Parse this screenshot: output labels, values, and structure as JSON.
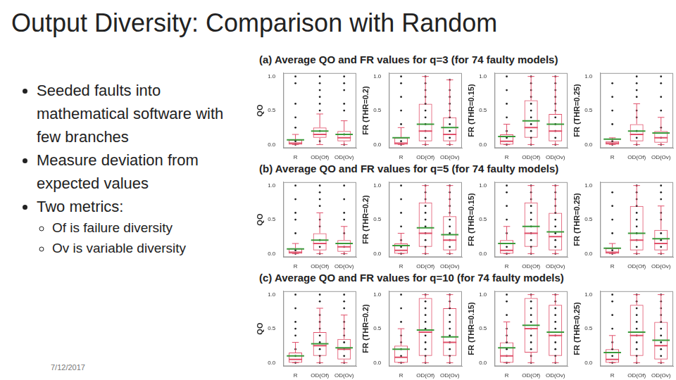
{
  "slide": {
    "title": "Output Diversity: Comparison with Random",
    "bullets": [
      {
        "text": "Seeded faults into mathematical software with few branches",
        "sub": []
      },
      {
        "text": "Measure deviation from expected values",
        "sub": []
      },
      {
        "text": "Two metrics:",
        "sub": [
          "Of is failure diversity",
          "Ov is variable diversity"
        ]
      }
    ],
    "date": "7/12/2017"
  },
  "chart_data": [
    {
      "type": "boxplot",
      "title": "(a) Average QO and FR values for q=3 (for 74 faulty models)",
      "categories": [
        "R",
        "OD(Of)",
        "OD(Ov)"
      ],
      "color": "#e0506a",
      "grid": false,
      "ylim": [
        -0.05,
        1.05
      ],
      "yticks": [
        {
          "value": 0,
          "label": "0.0"
        },
        {
          "value": 0.5,
          "label": "0.5"
        },
        {
          "value": 1,
          "label": "1.0"
        }
      ],
      "panels": [
        {
          "y_label": "QO",
          "boxes": [
            {
              "min": 0,
              "q1": 0,
              "median": 0.02,
              "q3": 0.07,
              "max": 0.15,
              "mean": 0.07,
              "points": [
                0,
                0.05,
                0.25,
                0.4,
                0.6,
                0.9,
                1
              ]
            },
            {
              "min": 0,
              "q1": 0.1,
              "median": 0.15,
              "q3": 0.25,
              "max": 0.45,
              "mean": 0.2,
              "points": [
                0.05,
                0.2,
                0.5,
                0.6,
                0.7,
                0.8,
                0.9,
                1
              ]
            },
            {
              "min": 0,
              "q1": 0.05,
              "median": 0.1,
              "q3": 0.2,
              "max": 0.35,
              "mean": 0.15,
              "points": [
                0,
                0.15,
                0.5,
                0.6,
                0.8,
                0.9,
                1
              ]
            }
          ]
        },
        {
          "y_label": "FR (THR=0.2)",
          "boxes": [
            {
              "min": 0,
              "q1": 0,
              "median": 0.02,
              "q3": 0.1,
              "max": 0.25,
              "mean": 0.1,
              "points": [
                0,
                0.05,
                0.3,
                0.5,
                0.7,
                0.9,
                1
              ]
            },
            {
              "min": 0,
              "q1": 0.05,
              "median": 0.2,
              "q3": 0.6,
              "max": 1,
              "mean": 0.3,
              "points": [
                0,
                0.1,
                0.2,
                0.3,
                0.4,
                0.5,
                0.6,
                0.7,
                0.8,
                0.9,
                1
              ]
            },
            {
              "min": 0,
              "q1": 0.05,
              "median": 0.15,
              "q3": 0.4,
              "max": 0.95,
              "mean": 0.25,
              "points": [
                0,
                0.1,
                0.2,
                0.3,
                0.4,
                0.5,
                0.6,
                0.7,
                0.8,
                0.95
              ]
            }
          ]
        },
        {
          "y_label": "FR (THR=0.15)",
          "boxes": [
            {
              "min": 0,
              "q1": 0,
              "median": 0.05,
              "q3": 0.15,
              "max": 0.3,
              "mean": 0.12,
              "points": [
                0,
                0.1,
                0.2,
                0.4,
                0.6,
                0.8,
                1
              ]
            },
            {
              "min": 0,
              "q1": 0.1,
              "median": 0.25,
              "q3": 0.65,
              "max": 1,
              "mean": 0.35,
              "points": [
                0,
                0.1,
                0.2,
                0.3,
                0.4,
                0.5,
                0.6,
                0.7,
                0.8,
                0.9,
                1
              ]
            },
            {
              "min": 0,
              "q1": 0.05,
              "median": 0.2,
              "q3": 0.45,
              "max": 1,
              "mean": 0.3,
              "points": [
                0,
                0.1,
                0.2,
                0.3,
                0.4,
                0.5,
                0.6,
                0.7,
                0.8,
                0.9,
                1
              ]
            }
          ]
        },
        {
          "y_label": "FR (THR=0.25)",
          "boxes": [
            {
              "min": 0,
              "q1": 0,
              "median": 0.02,
              "q3": 0.05,
              "max": 0.1,
              "mean": 0.08,
              "points": [
                0,
                0.05,
                0.3,
                0.5,
                0.7,
                0.9
              ]
            },
            {
              "min": 0,
              "q1": 0.05,
              "median": 0.15,
              "q3": 0.3,
              "max": 0.6,
              "mean": 0.2,
              "points": [
                0,
                0.1,
                0.2,
                0.4,
                0.5,
                0.7,
                0.8,
                0.9,
                1
              ]
            },
            {
              "min": 0,
              "q1": 0.03,
              "median": 0.1,
              "q3": 0.2,
              "max": 0.4,
              "mean": 0.17,
              "points": [
                0,
                0.1,
                0.25,
                0.5,
                0.7,
                0.9,
                1
              ]
            }
          ]
        }
      ]
    },
    {
      "type": "boxplot",
      "title": "(b) Average QO and FR values for q=5 (for 74 faulty models)",
      "categories": [
        "R",
        "OD(Of)",
        "OD(Ov)"
      ],
      "color": "#e0506a",
      "grid": false,
      "ylim": [
        -0.05,
        1.05
      ],
      "yticks": [
        {
          "value": 0,
          "label": "0.0"
        },
        {
          "value": 0.5,
          "label": "0.5"
        },
        {
          "value": 1,
          "label": "1.0"
        }
      ],
      "panels": [
        {
          "y_label": "QO",
          "boxes": [
            {
              "min": 0,
              "q1": 0,
              "median": 0.02,
              "q3": 0.08,
              "max": 0.15,
              "mean": 0.07,
              "points": [
                0,
                0.05,
                0.3,
                0.5,
                0.6,
                0.8,
                1
              ]
            },
            {
              "min": 0,
              "q1": 0.05,
              "median": 0.15,
              "q3": 0.3,
              "max": 0.6,
              "mean": 0.2,
              "points": [
                0,
                0.1,
                0.2,
                0.4,
                0.5,
                0.7,
                0.8,
                0.9,
                1
              ]
            },
            {
              "min": 0,
              "q1": 0.03,
              "median": 0.1,
              "q3": 0.2,
              "max": 0.4,
              "mean": 0.15,
              "points": [
                0,
                0.1,
                0.3,
                0.5,
                0.6,
                0.8,
                1
              ]
            }
          ]
        },
        {
          "y_label": "FR (THR=0.2)",
          "boxes": [
            {
              "min": 0,
              "q1": 0,
              "median": 0.05,
              "q3": 0.15,
              "max": 0.3,
              "mean": 0.12,
              "points": [
                0,
                0.1,
                0.2,
                0.4,
                0.6,
                0.8,
                1
              ]
            },
            {
              "min": 0,
              "q1": 0.1,
              "median": 0.3,
              "q3": 0.75,
              "max": 1,
              "mean": 0.38,
              "points": [
                0,
                0.1,
                0.2,
                0.3,
                0.4,
                0.5,
                0.6,
                0.7,
                0.8,
                0.9,
                1
              ]
            },
            {
              "min": 0,
              "q1": 0.05,
              "median": 0.2,
              "q3": 0.55,
              "max": 1,
              "mean": 0.28,
              "points": [
                0,
                0.1,
                0.2,
                0.3,
                0.4,
                0.5,
                0.6,
                0.7,
                0.8,
                0.9,
                1
              ]
            }
          ]
        },
        {
          "y_label": "FR (THR=0.15)",
          "boxes": [
            {
              "min": 0,
              "q1": 0,
              "median": 0.05,
              "q3": 0.2,
              "max": 0.4,
              "mean": 0.15,
              "points": [
                0,
                0.1,
                0.3,
                0.5,
                0.7,
                0.9,
                1
              ]
            },
            {
              "min": 0,
              "q1": 0.1,
              "median": 0.3,
              "q3": 0.75,
              "max": 1,
              "mean": 0.4,
              "points": [
                0,
                0.1,
                0.2,
                0.3,
                0.4,
                0.5,
                0.6,
                0.7,
                0.8,
                0.9,
                1
              ]
            },
            {
              "min": 0,
              "q1": 0.05,
              "median": 0.25,
              "q3": 0.6,
              "max": 1,
              "mean": 0.32,
              "points": [
                0,
                0.1,
                0.2,
                0.3,
                0.4,
                0.5,
                0.6,
                0.7,
                0.8,
                0.9,
                1
              ]
            }
          ]
        },
        {
          "y_label": "FR (THR=0.25)",
          "boxes": [
            {
              "min": 0,
              "q1": 0,
              "median": 0.02,
              "q3": 0.08,
              "max": 0.15,
              "mean": 0.08,
              "points": [
                0,
                0.05,
                0.3,
                0.5,
                0.7,
                0.9
              ]
            },
            {
              "min": 0,
              "q1": 0.05,
              "median": 0.2,
              "q3": 0.7,
              "max": 1,
              "mean": 0.3,
              "points": [
                0,
                0.1,
                0.2,
                0.3,
                0.4,
                0.5,
                0.6,
                0.7,
                0.8,
                0.9,
                1
              ]
            },
            {
              "min": 0,
              "q1": 0.05,
              "median": 0.15,
              "q3": 0.35,
              "max": 0.7,
              "mean": 0.22,
              "points": [
                0,
                0.1,
                0.2,
                0.3,
                0.5,
                0.6,
                0.8,
                0.9,
                1
              ]
            }
          ]
        }
      ]
    },
    {
      "type": "boxplot",
      "title": "(c) Average QO and FR values for q=10 (for 74 faulty models)",
      "categories": [
        "R",
        "OD(Of)",
        "OD(Ov)"
      ],
      "color": "#e0506a",
      "grid": false,
      "ylim": [
        -0.05,
        1.05
      ],
      "yticks": [
        {
          "value": 0,
          "label": "0.0"
        },
        {
          "value": 0.5,
          "label": "0.5"
        },
        {
          "value": 1,
          "label": "1.0"
        }
      ],
      "panels": [
        {
          "y_label": "QO",
          "boxes": [
            {
              "min": 0,
              "q1": 0,
              "median": 0.05,
              "q3": 0.15,
              "max": 0.3,
              "mean": 0.1,
              "points": [
                0,
                0.1,
                0.2,
                0.4,
                0.5,
                0.6,
                0.8,
                1
              ]
            },
            {
              "min": 0,
              "q1": 0.1,
              "median": 0.25,
              "q3": 0.45,
              "max": 0.8,
              "mean": 0.28,
              "points": [
                0,
                0.1,
                0.2,
                0.3,
                0.4,
                0.5,
                0.6,
                0.7,
                0.9,
                1
              ]
            },
            {
              "min": 0,
              "q1": 0.05,
              "median": 0.2,
              "q3": 0.35,
              "max": 0.7,
              "mean": 0.22,
              "points": [
                0,
                0.1,
                0.2,
                0.3,
                0.4,
                0.5,
                0.6,
                0.8,
                0.9,
                1
              ]
            }
          ]
        },
        {
          "y_label": "FR (THR=0.2)",
          "boxes": [
            {
              "min": 0,
              "q1": 0,
              "median": 0.08,
              "q3": 0.25,
              "max": 0.5,
              "mean": 0.2,
              "points": [
                0,
                0.1,
                0.2,
                0.3,
                0.4,
                0.6,
                0.8,
                1
              ]
            },
            {
              "min": 0,
              "q1": 0.1,
              "median": 0.45,
              "q3": 0.95,
              "max": 1,
              "mean": 0.48,
              "points": [
                0,
                0.1,
                0.2,
                0.3,
                0.4,
                0.5,
                0.6,
                0.7,
                0.8,
                0.9,
                1
              ]
            },
            {
              "min": 0,
              "q1": 0.1,
              "median": 0.3,
              "q3": 0.8,
              "max": 1,
              "mean": 0.38,
              "points": [
                0,
                0.1,
                0.2,
                0.3,
                0.4,
                0.5,
                0.6,
                0.7,
                0.8,
                0.9,
                1
              ]
            }
          ]
        },
        {
          "y_label": "FR (THR=0.15)",
          "boxes": [
            {
              "min": 0,
              "q1": 0,
              "median": 0.1,
              "q3": 0.3,
              "max": 0.6,
              "mean": 0.22,
              "points": [
                0,
                0.1,
                0.2,
                0.3,
                0.4,
                0.5,
                0.7,
                0.9,
                1
              ]
            },
            {
              "min": 0,
              "q1": 0.15,
              "median": 0.5,
              "q3": 0.95,
              "max": 1,
              "mean": 0.55,
              "points": [
                0,
                0.1,
                0.2,
                0.3,
                0.4,
                0.5,
                0.6,
                0.7,
                0.8,
                0.9,
                1
              ]
            },
            {
              "min": 0,
              "q1": 0.1,
              "median": 0.4,
              "q3": 0.85,
              "max": 1,
              "mean": 0.45,
              "points": [
                0,
                0.1,
                0.2,
                0.3,
                0.4,
                0.5,
                0.6,
                0.7,
                0.8,
                0.9,
                1
              ]
            }
          ]
        },
        {
          "y_label": "FR (THR=0.25)",
          "boxes": [
            {
              "min": 0,
              "q1": 0,
              "median": 0.05,
              "q3": 0.2,
              "max": 0.4,
              "mean": 0.15,
              "points": [
                0,
                0.1,
                0.2,
                0.3,
                0.5,
                0.7,
                0.9,
                1
              ]
            },
            {
              "min": 0,
              "q1": 0.1,
              "median": 0.4,
              "q3": 0.85,
              "max": 1,
              "mean": 0.45,
              "points": [
                0,
                0.1,
                0.2,
                0.3,
                0.4,
                0.5,
                0.6,
                0.7,
                0.8,
                0.9,
                1
              ]
            },
            {
              "min": 0,
              "q1": 0.05,
              "median": 0.25,
              "q3": 0.6,
              "max": 1,
              "mean": 0.33,
              "points": [
                0,
                0.1,
                0.2,
                0.3,
                0.4,
                0.5,
                0.6,
                0.7,
                0.8,
                0.9,
                1
              ]
            }
          ]
        }
      ]
    }
  ]
}
